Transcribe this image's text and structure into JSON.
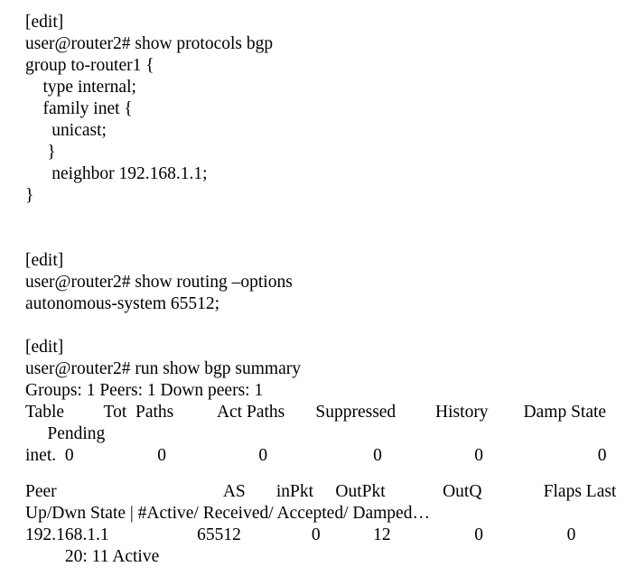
{
  "terminal": {
    "colors": {
      "foreground": "#000000",
      "background": "#ffffff"
    },
    "blocks": [
      {
        "name": "show-protocols-bgp",
        "lines": [
          "[edit]",
          "user@router2# show protocols bgp",
          "group to-router1 {",
          "    type internal;",
          "    family inet {",
          "      unicast;",
          "     }",
          "      neighbor 192.168.1.1;",
          "}"
        ]
      },
      {
        "name": "show-routing-options",
        "lines": [
          "[edit]",
          "user@router2# show routing –options",
          "autonomous-system 65512;"
        ]
      },
      {
        "name": "show-bgp-summary",
        "lines": [
          "[edit]",
          "user@router2# run show bgp summary",
          "Groups: 1 Peers: 1 Down peers: 1",
          "Table         Tot  Paths          Act Paths       Suppressed         History        Damp State",
          "     Pending",
          "inet.  0                   0                     0                        0                     0                          0"
        ]
      },
      {
        "name": "bgp-peer-table",
        "lines": [
          "Peer                                      AS       inPkt     OutPkt             OutQ              Flaps Last",
          "Up/Dwn State | #Active/ Received/ Accepted/ Damped…",
          "192.168.1.1                    65512                0            12                   0                   0",
          "         20: 11 Active"
        ]
      }
    ]
  }
}
